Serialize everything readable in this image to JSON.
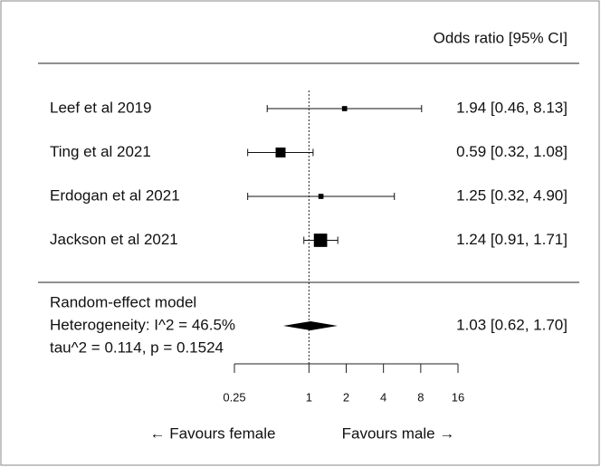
{
  "chart_data": {
    "type": "forest",
    "header": "Odds ratio [95% CI]",
    "studies": [
      {
        "name": "Leef et al  2019",
        "estimate": 1.94,
        "lower": 0.46,
        "upper": 8.13,
        "weight": 8,
        "label": "1.94 [0.46, 8.13]"
      },
      {
        "name": "Ting et al 2021",
        "estimate": 0.59,
        "lower": 0.32,
        "upper": 1.08,
        "weight": 30,
        "label": "0.59 [0.32, 1.08]"
      },
      {
        "name": "Erdogan et al 2021",
        "estimate": 1.25,
        "lower": 0.32,
        "upper": 4.9,
        "weight": 8,
        "label": "1.25 [0.32, 4.90]"
      },
      {
        "name": "Jackson et al 2021",
        "estimate": 1.24,
        "lower": 0.91,
        "upper": 1.71,
        "weight": 54,
        "label": "1.24 [0.91, 1.71]"
      }
    ],
    "summary": {
      "lines": [
        "Random-effect model",
        "Heterogeneity: I^2 = 46.5%",
        "tau^2 = 0.114, p = 0.1524"
      ],
      "estimate": 1.03,
      "lower": 0.62,
      "upper": 1.7,
      "label": "1.03 [0.62, 1.70]"
    },
    "xlim": [
      0.25,
      16
    ],
    "xticks": [
      0.25,
      1,
      2,
      4,
      8,
      16
    ],
    "log_scale": true,
    "reference_line": 1,
    "left_label": "← Favours female",
    "right_label": "Favours male →"
  }
}
